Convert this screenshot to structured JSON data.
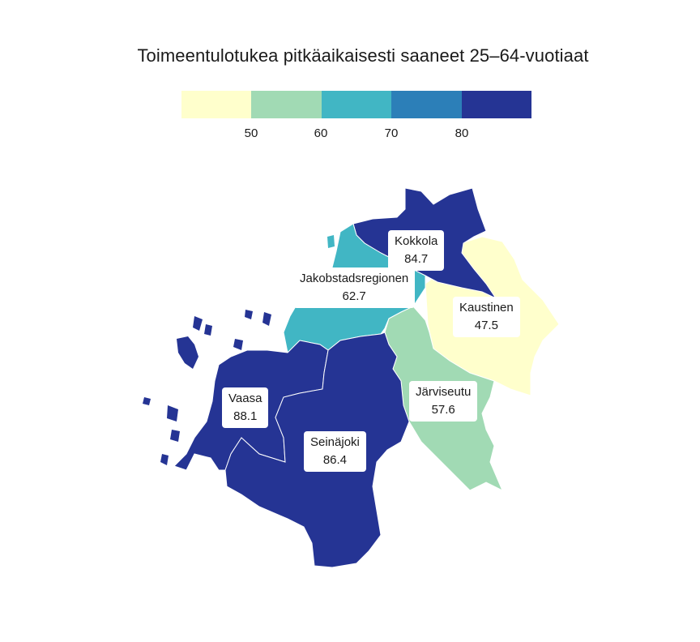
{
  "title": "Toimeentulotukea pitkäaikaisesti saaneet 25–64-vuotiaat",
  "legend": {
    "colors": [
      "#ffffcc",
      "#a1dab4",
      "#41b6c4",
      "#2c7fb8",
      "#253494"
    ],
    "ticks": [
      "50",
      "60",
      "70",
      "80"
    ]
  },
  "regions": [
    {
      "name": "Kokkola",
      "value": "84.7",
      "color": "#253494"
    },
    {
      "name": "Jakobstadsregionen",
      "value": "62.7",
      "color": "#41b6c4"
    },
    {
      "name": "Kaustinen",
      "value": "47.5",
      "color": "#ffffcc"
    },
    {
      "name": "Järviseutu",
      "value": "57.6",
      "color": "#a1dab4"
    },
    {
      "name": "Vaasa",
      "value": "88.1",
      "color": "#253494"
    },
    {
      "name": "Seinäjoki",
      "value": "86.4",
      "color": "#253494"
    }
  ]
}
